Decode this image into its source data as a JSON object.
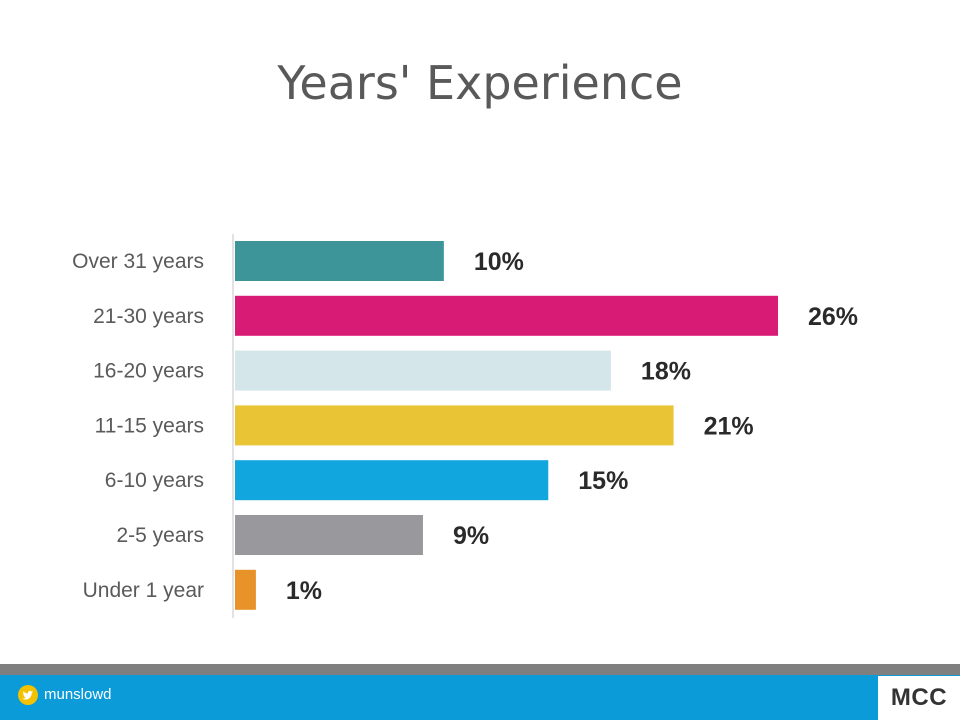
{
  "slide": {
    "title": "Years' Experience"
  },
  "chart_data": {
    "type": "bar",
    "orientation": "horizontal",
    "title": "",
    "categories": [
      "Over 31 years",
      "21-30 years",
      "16-20 years",
      "11-15 years",
      "6-10 years",
      "2-5 years",
      "Under 1 year"
    ],
    "values": [
      10,
      26,
      18,
      21,
      15,
      9,
      1
    ],
    "value_labels": [
      "10%",
      "26%",
      "18%",
      "21%",
      "15%",
      "9%",
      "1%"
    ],
    "colors": [
      "#3d959a",
      "#d81b74",
      "#d5e6ea",
      "#e9c435",
      "#12a6de",
      "#98989d",
      "#e8922a"
    ],
    "xlim": [
      0,
      26
    ],
    "grid": false,
    "legend": "none"
  },
  "footer": {
    "twitter_handle": "munslowd",
    "logo_text": "MCC",
    "accent_color": "#0a9bd8",
    "twitter_icon": "twitter-bird-icon"
  }
}
